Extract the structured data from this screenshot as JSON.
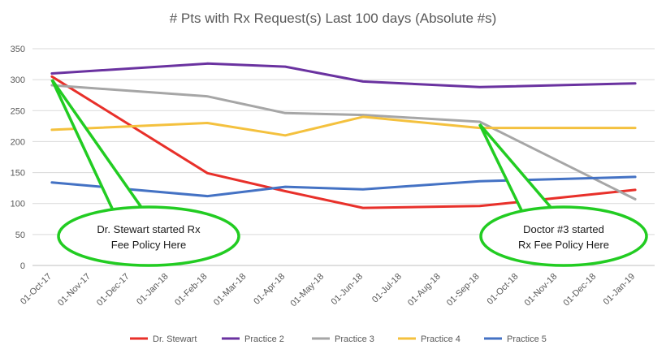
{
  "chart_data": {
    "type": "line",
    "title": "# Pts with Rx Request(s) Last 100 days (Absolute #s)",
    "xlabel": "",
    "ylabel": "",
    "x": [
      "01-Oct-17",
      "01-Nov-17",
      "01-Dec-17",
      "01-Jan-18",
      "01-Feb-18",
      "01-Mar-18",
      "01-Apr-18",
      "01-May-18",
      "01-Jun-18",
      "01-Jul-18",
      "01-Aug-18",
      "01-Sep-18",
      "01-Oct-18",
      "01-Nov-18",
      "01-Dec-18",
      "01-Jan-19"
    ],
    "ylim": [
      0,
      350
    ],
    "yticks": [
      0,
      50,
      100,
      150,
      200,
      250,
      300,
      350
    ],
    "grid": true,
    "legend_position": "bottom",
    "series": [
      {
        "name": "Dr. Stewart",
        "color": "#e8302a",
        "points": [
          [
            "01-Oct-17",
            305
          ],
          [
            "01-Feb-18",
            149
          ],
          [
            "01-Apr-18",
            120
          ],
          [
            "01-Jun-18",
            93
          ],
          [
            "01-Sep-18",
            96
          ],
          [
            "01-Jan-19",
            122
          ]
        ]
      },
      {
        "name": "Practice 2",
        "color": "#6a32a0",
        "points": [
          [
            "01-Oct-17",
            310
          ],
          [
            "01-Feb-18",
            326
          ],
          [
            "01-Apr-18",
            321
          ],
          [
            "01-Jun-18",
            297
          ],
          [
            "01-Sep-18",
            288
          ],
          [
            "01-Jan-19",
            294
          ]
        ]
      },
      {
        "name": "Practice 3",
        "color": "#a6a6a6",
        "points": [
          [
            "01-Oct-17",
            291
          ],
          [
            "01-Feb-18",
            273
          ],
          [
            "01-Apr-18",
            246
          ],
          [
            "01-Jun-18",
            243
          ],
          [
            "01-Sep-18",
            232
          ],
          [
            "01-Jan-19",
            107
          ]
        ]
      },
      {
        "name": "Practice 4",
        "color": "#f4c13e",
        "points": [
          [
            "01-Oct-17",
            219
          ],
          [
            "01-Feb-18",
            230
          ],
          [
            "01-Apr-18",
            210
          ],
          [
            "01-Jun-18",
            240
          ],
          [
            "01-Sep-18",
            222
          ],
          [
            "01-Jan-19",
            222
          ]
        ]
      },
      {
        "name": "Practice 5",
        "color": "#4472c4",
        "points": [
          [
            "01-Oct-17",
            134
          ],
          [
            "01-Feb-18",
            112
          ],
          [
            "01-Apr-18",
            127
          ],
          [
            "01-Jun-18",
            123
          ],
          [
            "01-Sep-18",
            136
          ],
          [
            "01-Jan-19",
            143
          ]
        ]
      }
    ],
    "annotations": [
      {
        "lines": [
          "Dr. Stewart started Rx",
          "Fee Policy Here"
        ],
        "target": [
          "01-Oct-17",
          300
        ],
        "color": "#22cc22"
      },
      {
        "lines": [
          "Doctor #3 started",
          "Rx Fee Policy Here"
        ],
        "target": [
          "01-Sep-18",
          228
        ],
        "color": "#22cc22"
      }
    ]
  }
}
